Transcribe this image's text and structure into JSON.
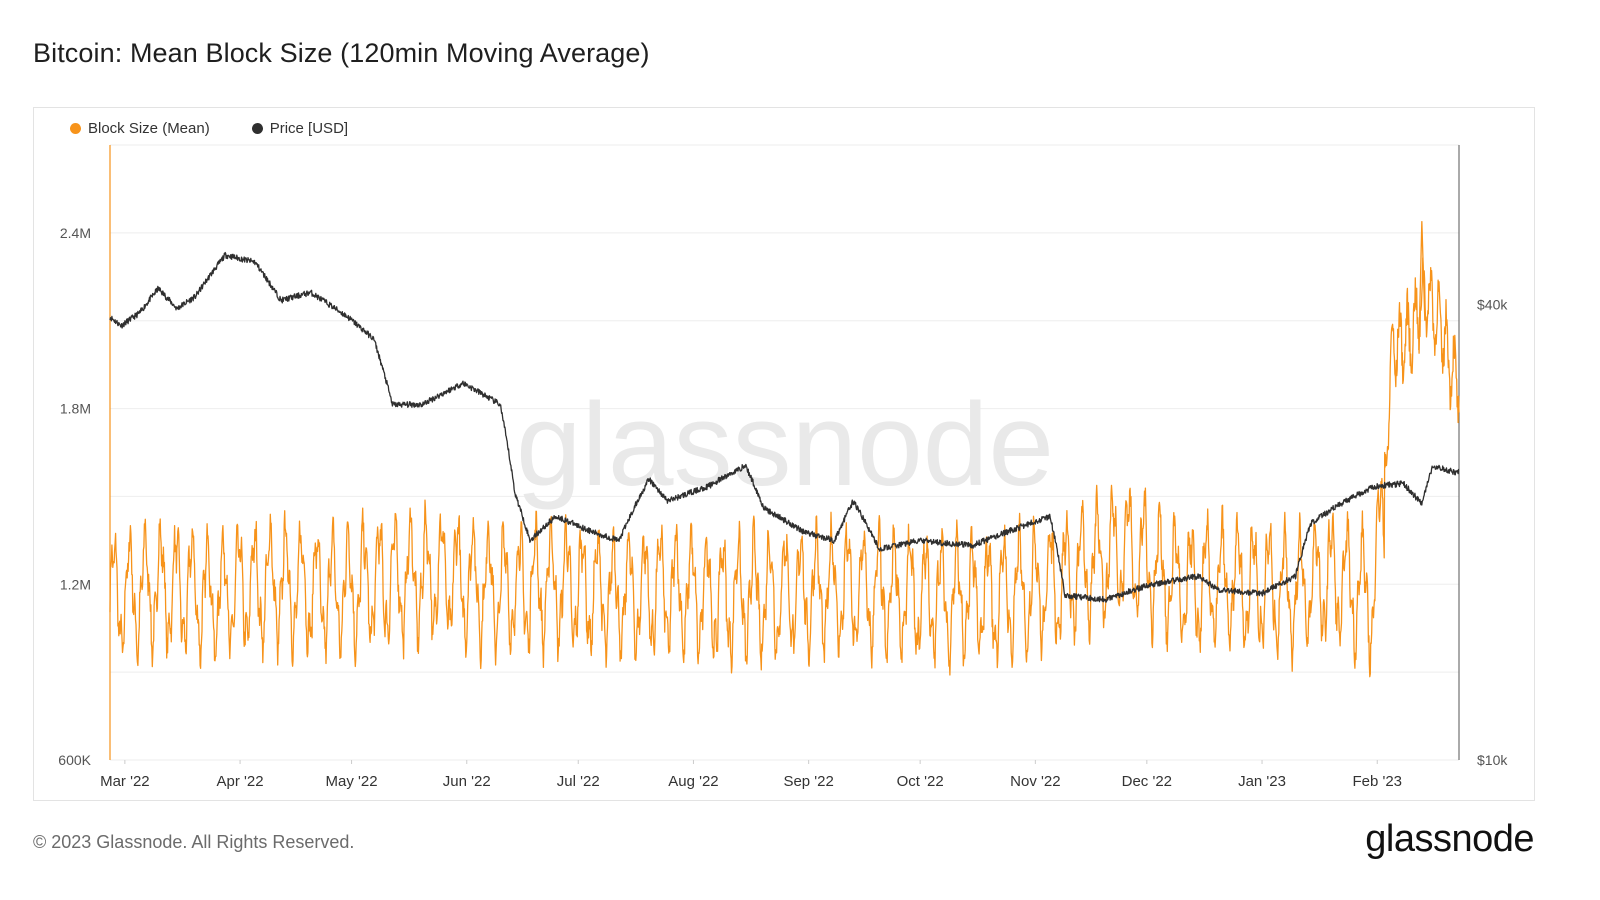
{
  "title": "Bitcoin: Mean Block Size (120min Moving Average)",
  "footer": {
    "copyright": "© 2023 Glassnode. All Rights Reserved.",
    "logo": "glassnode"
  },
  "watermark": "glassnode",
  "colors": {
    "block_size": "#f7931a",
    "price": "#2f2f2f",
    "grid": "#eeeeee",
    "axis_text": "#555555"
  },
  "chart_data": {
    "type": "line",
    "title": "Bitcoin: Mean Block Size (120min Moving Average)",
    "legend_position": "top-left",
    "grid": true,
    "x_range": [
      "2022-02-25",
      "2023-02-23"
    ],
    "x_ticks": [
      {
        "date": "2022-03-01",
        "label": "Mar '22"
      },
      {
        "date": "2022-04-01",
        "label": "Apr '22"
      },
      {
        "date": "2022-05-01",
        "label": "May '22"
      },
      {
        "date": "2022-06-01",
        "label": "Jun '22"
      },
      {
        "date": "2022-07-01",
        "label": "Jul '22"
      },
      {
        "date": "2022-08-01",
        "label": "Aug '22"
      },
      {
        "date": "2022-09-01",
        "label": "Sep '22"
      },
      {
        "date": "2022-10-01",
        "label": "Oct '22"
      },
      {
        "date": "2022-11-01",
        "label": "Nov '22"
      },
      {
        "date": "2022-12-01",
        "label": "Dec '22"
      },
      {
        "date": "2023-01-01",
        "label": "Jan '23"
      },
      {
        "date": "2023-02-01",
        "label": "Feb '23"
      }
    ],
    "y_left": {
      "ylim": [
        600000,
        2700000
      ],
      "ticks": [
        600000,
        1200000,
        1800000,
        2400000
      ],
      "tick_labels": [
        "600K",
        "1.2M",
        "1.8M",
        "2.4M"
      ]
    },
    "y_right": {
      "scale": "log",
      "ylim": [
        10000,
        65000
      ],
      "ticks": [
        10000,
        40000
      ],
      "tick_labels": [
        "$10k",
        "$40k"
      ]
    },
    "series": [
      {
        "name": "Block Size (Mean)",
        "axis": "left",
        "style": "oscillating",
        "points": [
          [
            "2022-02-25",
            1150000
          ],
          [
            "2022-03-10",
            1190000
          ],
          [
            "2022-03-25",
            1160000
          ],
          [
            "2022-04-10",
            1200000
          ],
          [
            "2022-04-25",
            1170000
          ],
          [
            "2022-05-10",
            1210000
          ],
          [
            "2022-05-25",
            1230000
          ],
          [
            "2022-06-10",
            1180000
          ],
          [
            "2022-06-25",
            1200000
          ],
          [
            "2022-07-10",
            1160000
          ],
          [
            "2022-07-25",
            1180000
          ],
          [
            "2022-08-10",
            1150000
          ],
          [
            "2022-08-25",
            1170000
          ],
          [
            "2022-09-10",
            1180000
          ],
          [
            "2022-09-25",
            1160000
          ],
          [
            "2022-10-10",
            1150000
          ],
          [
            "2022-10-25",
            1160000
          ],
          [
            "2022-11-10",
            1220000
          ],
          [
            "2022-11-25",
            1330000
          ],
          [
            "2022-12-10",
            1190000
          ],
          [
            "2022-12-25",
            1200000
          ],
          [
            "2023-01-10",
            1180000
          ],
          [
            "2023-01-20",
            1220000
          ],
          [
            "2023-01-31",
            1150000
          ],
          [
            "2023-02-03",
            1550000
          ],
          [
            "2023-02-05",
            2000000
          ],
          [
            "2023-02-10",
            2050000
          ],
          [
            "2023-02-14",
            2200000
          ],
          [
            "2023-02-18",
            2080000
          ],
          [
            "2023-02-22",
            1900000
          ]
        ],
        "peak": {
          "date": "2023-02-13",
          "value": 2440000
        },
        "trough": 880000
      },
      {
        "name": "Price [USD]",
        "axis": "right",
        "points": [
          [
            "2022-02-25",
            38500
          ],
          [
            "2022-02-28",
            37500
          ],
          [
            "2022-03-05",
            39000
          ],
          [
            "2022-03-10",
            42000
          ],
          [
            "2022-03-15",
            39500
          ],
          [
            "2022-03-20",
            41000
          ],
          [
            "2022-03-28",
            46500
          ],
          [
            "2022-04-05",
            45500
          ],
          [
            "2022-04-12",
            40500
          ],
          [
            "2022-04-20",
            41500
          ],
          [
            "2022-04-30",
            38500
          ],
          [
            "2022-05-07",
            36000
          ],
          [
            "2022-05-12",
            29500
          ],
          [
            "2022-05-20",
            29500
          ],
          [
            "2022-05-31",
            31500
          ],
          [
            "2022-06-10",
            29500
          ],
          [
            "2022-06-14",
            22500
          ],
          [
            "2022-06-18",
            19500
          ],
          [
            "2022-06-25",
            21000
          ],
          [
            "2022-07-05",
            20000
          ],
          [
            "2022-07-12",
            19500
          ],
          [
            "2022-07-20",
            23500
          ],
          [
            "2022-07-25",
            22000
          ],
          [
            "2022-08-05",
            23000
          ],
          [
            "2022-08-15",
            24500
          ],
          [
            "2022-08-20",
            21500
          ],
          [
            "2022-08-31",
            20000
          ],
          [
            "2022-09-08",
            19500
          ],
          [
            "2022-09-13",
            22000
          ],
          [
            "2022-09-20",
            19000
          ],
          [
            "2022-10-01",
            19500
          ],
          [
            "2022-10-15",
            19200
          ],
          [
            "2022-10-30",
            20500
          ],
          [
            "2022-11-05",
            21000
          ],
          [
            "2022-11-09",
            16500
          ],
          [
            "2022-11-20",
            16300
          ],
          [
            "2022-12-01",
            17000
          ],
          [
            "2022-12-15",
            17500
          ],
          [
            "2022-12-20",
            16800
          ],
          [
            "2023-01-01",
            16600
          ],
          [
            "2023-01-10",
            17500
          ],
          [
            "2023-01-14",
            20500
          ],
          [
            "2023-01-20",
            21500
          ],
          [
            "2023-01-31",
            23000
          ],
          [
            "2023-02-08",
            23200
          ],
          [
            "2023-02-13",
            21800
          ],
          [
            "2023-02-16",
            24500
          ],
          [
            "2023-02-22",
            24000
          ]
        ]
      }
    ]
  }
}
